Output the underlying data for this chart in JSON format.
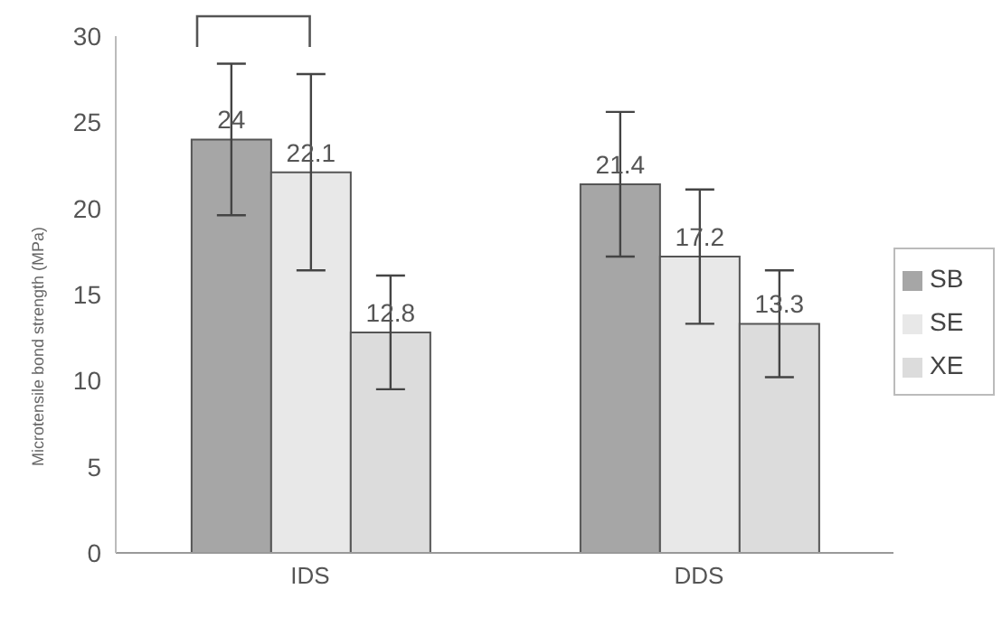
{
  "chart_data": {
    "type": "bar",
    "ylabel": "Microtensile bond strength (MPa)",
    "categories": [
      "IDS",
      "DDS"
    ],
    "series": [
      {
        "name": "SB",
        "color": "#a6a6a6",
        "values": [
          24,
          21.4
        ],
        "errors": [
          4.4,
          4.2
        ]
      },
      {
        "name": "SE",
        "color": "#e8e8e8",
        "values": [
          22.1,
          17.2
        ],
        "errors": [
          5.7,
          3.9
        ]
      },
      {
        "name": "XE",
        "color": "#dcdcdc",
        "values": [
          12.8,
          13.3
        ],
        "errors": [
          3.3,
          3.1
        ]
      }
    ],
    "ylim": [
      0,
      30
    ],
    "yticks": [
      0,
      5,
      10,
      15,
      20,
      25,
      30
    ],
    "grid": false,
    "legend": "right",
    "data_labels": true
  }
}
